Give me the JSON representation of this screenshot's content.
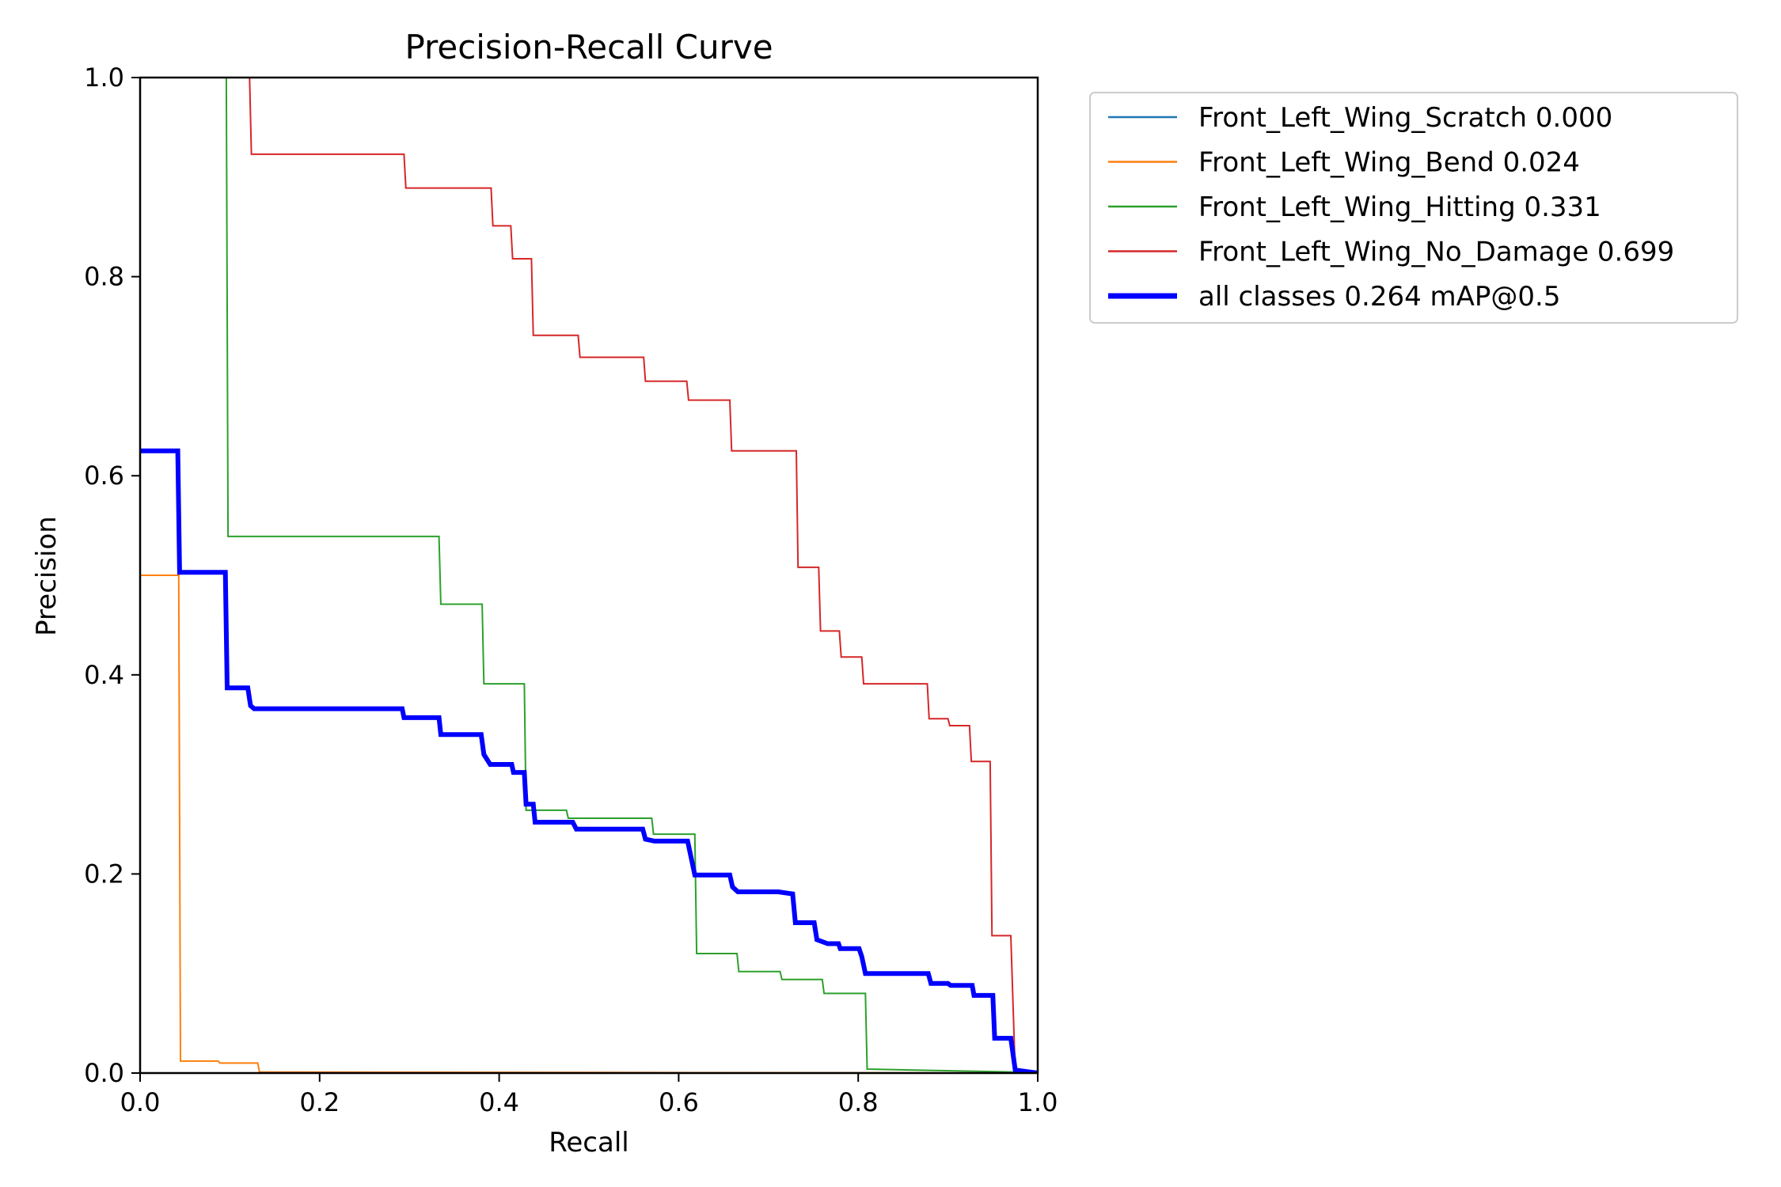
{
  "chart_data": {
    "type": "line",
    "title": "Precision-Recall Curve",
    "xlabel": "Recall",
    "ylabel": "Precision",
    "xlim": [
      0.0,
      1.0
    ],
    "ylim": [
      0.0,
      1.0
    ],
    "xticks": [
      "0.0",
      "0.2",
      "0.4",
      "0.6",
      "0.8",
      "1.0"
    ],
    "yticks": [
      "0.0",
      "0.2",
      "0.4",
      "0.6",
      "0.8",
      "1.0"
    ],
    "grid": false,
    "legend_position": "outside-upper-right",
    "series": [
      {
        "name": "Front_Left_Wing_Scratch 0.000",
        "color": "#1f77b4",
        "width": "thin",
        "step": "pre",
        "points": [
          [
            0.0,
            0.0
          ],
          [
            1.0,
            0.0
          ]
        ]
      },
      {
        "name": "Front_Left_Wing_Bend 0.024",
        "color": "#ff7f0e",
        "width": "thin",
        "step": "pre",
        "points": [
          [
            0.0,
            0.5
          ],
          [
            0.043,
            0.5
          ],
          [
            0.045,
            0.012
          ],
          [
            0.087,
            0.012
          ],
          [
            0.089,
            0.01
          ],
          [
            0.131,
            0.01
          ],
          [
            0.133,
            0.001
          ],
          [
            1.0,
            0.0
          ]
        ]
      },
      {
        "name": "Front_Left_Wing_Hitting 0.331",
        "color": "#2ca02c",
        "width": "thin",
        "step": "pre",
        "points": [
          [
            0.096,
            1.0
          ],
          [
            0.098,
            0.539
          ],
          [
            0.333,
            0.539
          ],
          [
            0.335,
            0.471
          ],
          [
            0.381,
            0.471
          ],
          [
            0.383,
            0.391
          ],
          [
            0.428,
            0.391
          ],
          [
            0.43,
            0.264
          ],
          [
            0.475,
            0.264
          ],
          [
            0.477,
            0.256
          ],
          [
            0.57,
            0.256
          ],
          [
            0.572,
            0.24
          ],
          [
            0.618,
            0.24
          ],
          [
            0.62,
            0.12
          ],
          [
            0.665,
            0.12
          ],
          [
            0.667,
            0.102
          ],
          [
            0.713,
            0.102
          ],
          [
            0.715,
            0.094
          ],
          [
            0.76,
            0.094
          ],
          [
            0.762,
            0.08
          ],
          [
            0.808,
            0.08
          ],
          [
            0.81,
            0.004
          ],
          [
            0.975,
            0.001
          ],
          [
            1.0,
            0.0
          ]
        ]
      },
      {
        "name": "Front_Left_Wing_No_Damage 0.699",
        "color": "#d62728",
        "width": "thin",
        "step": "pre",
        "points": [
          [
            0.122,
            1.0
          ],
          [
            0.124,
            0.923
          ],
          [
            0.294,
            0.923
          ],
          [
            0.296,
            0.889
          ],
          [
            0.391,
            0.889
          ],
          [
            0.393,
            0.851
          ],
          [
            0.413,
            0.851
          ],
          [
            0.415,
            0.818
          ],
          [
            0.436,
            0.818
          ],
          [
            0.438,
            0.741
          ],
          [
            0.488,
            0.741
          ],
          [
            0.49,
            0.719
          ],
          [
            0.561,
            0.719
          ],
          [
            0.563,
            0.695
          ],
          [
            0.609,
            0.695
          ],
          [
            0.611,
            0.676
          ],
          [
            0.657,
            0.676
          ],
          [
            0.659,
            0.625
          ],
          [
            0.731,
            0.625
          ],
          [
            0.733,
            0.508
          ],
          [
            0.756,
            0.508
          ],
          [
            0.758,
            0.444
          ],
          [
            0.779,
            0.444
          ],
          [
            0.781,
            0.418
          ],
          [
            0.804,
            0.418
          ],
          [
            0.806,
            0.391
          ],
          [
            0.877,
            0.391
          ],
          [
            0.879,
            0.356
          ],
          [
            0.9,
            0.356
          ],
          [
            0.902,
            0.349
          ],
          [
            0.924,
            0.349
          ],
          [
            0.926,
            0.313
          ],
          [
            0.947,
            0.313
          ],
          [
            0.949,
            0.138
          ],
          [
            0.97,
            0.138
          ],
          [
            0.975,
            0.0
          ],
          [
            1.0,
            0.0
          ]
        ]
      },
      {
        "name": "all classes 0.264 mAP@0.5",
        "color": "#0000ff",
        "width": "thick",
        "step": "pre",
        "points": [
          [
            0.0,
            0.625
          ],
          [
            0.042,
            0.625
          ],
          [
            0.044,
            0.503
          ],
          [
            0.095,
            0.503
          ],
          [
            0.097,
            0.387
          ],
          [
            0.12,
            0.387
          ],
          [
            0.123,
            0.369
          ],
          [
            0.127,
            0.366
          ],
          [
            0.292,
            0.366
          ],
          [
            0.294,
            0.357
          ],
          [
            0.333,
            0.357
          ],
          [
            0.335,
            0.34
          ],
          [
            0.38,
            0.34
          ],
          [
            0.383,
            0.32
          ],
          [
            0.39,
            0.31
          ],
          [
            0.414,
            0.31
          ],
          [
            0.416,
            0.302
          ],
          [
            0.428,
            0.302
          ],
          [
            0.43,
            0.27
          ],
          [
            0.438,
            0.27
          ],
          [
            0.44,
            0.252
          ],
          [
            0.482,
            0.252
          ],
          [
            0.486,
            0.245
          ],
          [
            0.56,
            0.245
          ],
          [
            0.563,
            0.235
          ],
          [
            0.573,
            0.233
          ],
          [
            0.61,
            0.233
          ],
          [
            0.618,
            0.199
          ],
          [
            0.657,
            0.199
          ],
          [
            0.66,
            0.187
          ],
          [
            0.666,
            0.182
          ],
          [
            0.711,
            0.182
          ],
          [
            0.727,
            0.18
          ],
          [
            0.73,
            0.151
          ],
          [
            0.751,
            0.151
          ],
          [
            0.754,
            0.134
          ],
          [
            0.766,
            0.13
          ],
          [
            0.778,
            0.13
          ],
          [
            0.78,
            0.125
          ],
          [
            0.801,
            0.125
          ],
          [
            0.804,
            0.117
          ],
          [
            0.808,
            0.1
          ],
          [
            0.878,
            0.1
          ],
          [
            0.881,
            0.09
          ],
          [
            0.9,
            0.09
          ],
          [
            0.903,
            0.088
          ],
          [
            0.927,
            0.088
          ],
          [
            0.929,
            0.078
          ],
          [
            0.95,
            0.078
          ],
          [
            0.952,
            0.035
          ],
          [
            0.97,
            0.035
          ],
          [
            0.975,
            0.003
          ],
          [
            1.0,
            0.0
          ]
        ]
      }
    ]
  }
}
